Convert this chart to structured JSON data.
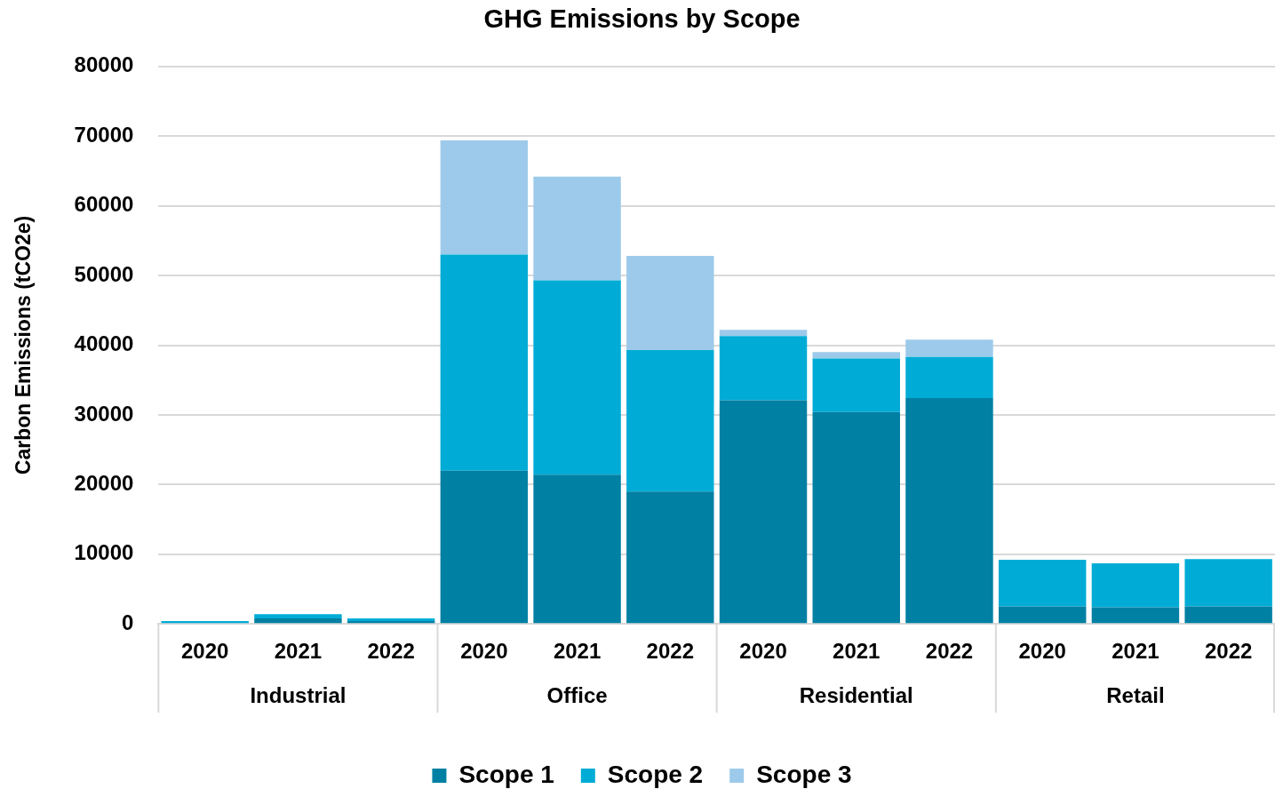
{
  "chart_data": {
    "type": "bar",
    "title": "GHG Emissions by Scope",
    "ylabel": "Carbon Emissions (tCO2e)",
    "categories": [
      "2020",
      "2021",
      "2022",
      "2020",
      "2021",
      "2022",
      "2020",
      "2021",
      "2022",
      "2020",
      "2021",
      "2022"
    ],
    "annotations": [
      "Industrial",
      "Office",
      "Residential",
      "Retail"
    ],
    "stacked": true,
    "series": [
      {
        "name": "Scope 1",
        "color": "#0080a3",
        "values": [
          null,
          800,
          400,
          22000,
          21400,
          19000,
          32100,
          30400,
          32400,
          2500,
          2400,
          2500
        ]
      },
      {
        "name": "Scope 2",
        "color": "#00acd6",
        "values": [
          400,
          600,
          400,
          31000,
          27900,
          20300,
          9200,
          7700,
          5900,
          6700,
          6300,
          6800
        ]
      },
      {
        "name": "Scope 3",
        "color": "#9dcaea",
        "values": [
          0,
          0,
          0,
          16400,
          14900,
          13500,
          900,
          900,
          2500,
          0,
          0,
          0
        ]
      }
    ],
    "ylim": [
      0,
      80000
    ],
    "yticks": [
      0,
      10000,
      20000,
      30000,
      40000,
      50000,
      60000,
      70000,
      80000
    ],
    "grid": "y",
    "legend": "bottom"
  }
}
